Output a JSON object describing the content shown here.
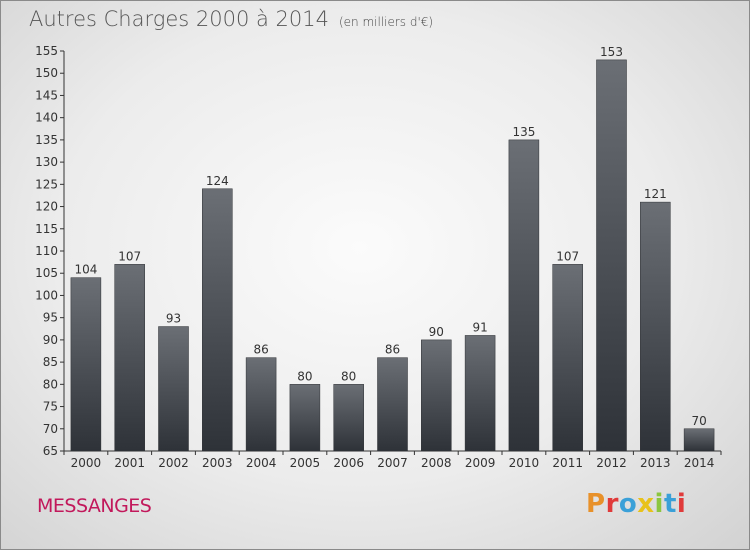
{
  "header": {
    "title": "Autres Charges 2000 à 2014",
    "subtitle": "(en milliers d'€)"
  },
  "footer": {
    "city": "MESSANGES"
  },
  "logo": {
    "letters": [
      "P",
      "r",
      "o",
      "x",
      "i",
      "t",
      "i"
    ],
    "colors": [
      "#e8912a",
      "#e03a3a",
      "#3aa0d8",
      "#e8c21a",
      "#8cc63f",
      "#3aa0d8",
      "#e03a3a"
    ]
  },
  "colors": {
    "bar_top": "#6b6f75",
    "bar_bottom": "#2e3238",
    "axis": "#333333"
  },
  "chart_data": {
    "type": "bar",
    "title": "Autres Charges 2000 à 2014",
    "subtitle": "(en milliers d'€)",
    "categories": [
      "2000",
      "2001",
      "2002",
      "2003",
      "2004",
      "2005",
      "2006",
      "2007",
      "2008",
      "2009",
      "2010",
      "2011",
      "2012",
      "2013",
      "2014"
    ],
    "values": [
      104,
      107,
      93,
      124,
      86,
      80,
      80,
      86,
      90,
      91,
      135,
      107,
      153,
      121,
      70
    ],
    "ylim": [
      65,
      155
    ],
    "yticks": [
      65,
      70,
      75,
      80,
      85,
      90,
      95,
      100,
      105,
      110,
      115,
      120,
      125,
      130,
      135,
      140,
      145,
      150,
      155
    ],
    "grid": false
  }
}
